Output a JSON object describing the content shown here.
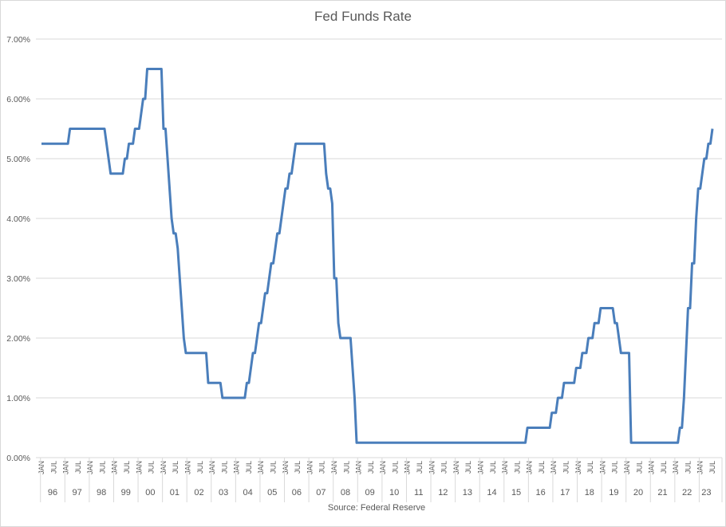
{
  "chart_data": {
    "type": "line",
    "title": "Fed Funds Rate",
    "source": "Source: Federal Reserve",
    "categories": [
      "JAN",
      null,
      null,
      null,
      null,
      null,
      "JUL",
      null,
      null,
      null,
      null,
      null,
      "JAN",
      null,
      null,
      null,
      null,
      null,
      "JUL",
      null,
      null,
      null,
      null,
      null,
      "JAN",
      null,
      null,
      null,
      null,
      null,
      "JUL",
      null,
      null,
      null,
      null,
      null,
      "JAN",
      null,
      null,
      null,
      null,
      null,
      "JUL",
      null,
      null,
      null,
      null,
      null,
      "JAN",
      null,
      null,
      null,
      null,
      null,
      "JUL",
      null,
      null,
      null,
      null,
      null,
      "JAN",
      null,
      null,
      null,
      null,
      null,
      "JUL",
      null,
      null,
      null,
      null,
      null,
      "JAN",
      null,
      null,
      null,
      null,
      null,
      "JUL",
      null,
      null,
      null,
      null,
      null,
      "JAN",
      null,
      null,
      null,
      null,
      null,
      "JUL",
      null,
      null,
      null,
      null,
      null,
      "JAN",
      null,
      null,
      null,
      null,
      null,
      "JUL",
      null,
      null,
      null,
      null,
      null,
      "JAN",
      null,
      null,
      null,
      null,
      null,
      "JUL",
      null,
      null,
      null,
      null,
      null,
      "JAN",
      null,
      null,
      null,
      null,
      null,
      "JUL",
      null,
      null,
      null,
      null,
      null,
      "JAN",
      null,
      null,
      null,
      null,
      null,
      "JUL",
      null,
      null,
      null,
      null,
      null,
      "JAN",
      null,
      null,
      null,
      null,
      null,
      "JUL",
      null,
      null,
      null,
      null,
      null,
      "JAN",
      null,
      null,
      null,
      null,
      null,
      "JUL",
      null,
      null,
      null,
      null,
      null,
      "JAN",
      null,
      null,
      null,
      null,
      null,
      "JUL",
      null,
      null,
      null,
      null,
      null,
      "JAN",
      null,
      null,
      null,
      null,
      null,
      "JUL",
      null,
      null,
      null,
      null,
      null,
      "JAN",
      null,
      null,
      null,
      null,
      null,
      "JUL",
      null,
      null,
      null,
      null,
      null,
      "JAN",
      null,
      null,
      null,
      null,
      null,
      "JUL",
      null,
      null,
      null,
      null,
      null,
      "JAN",
      null,
      null,
      null,
      null,
      null,
      "JUL",
      null,
      null,
      null,
      null,
      null,
      "JAN",
      null,
      null,
      null,
      null,
      null,
      "JUL",
      null,
      null,
      null,
      null,
      null,
      "JAN",
      null,
      null,
      null,
      null,
      null,
      "JUL",
      null,
      null,
      null,
      null,
      null,
      "JAN",
      null,
      null,
      null,
      null,
      null,
      "JUL",
      null,
      null,
      null,
      null,
      null,
      "JAN",
      null,
      null,
      null,
      null,
      null,
      "JUL",
      null,
      null,
      null,
      null,
      null,
      "JAN",
      null,
      null,
      null,
      null,
      null,
      "JUL",
      null,
      null,
      null,
      null,
      null,
      "JAN",
      null,
      null,
      null,
      null,
      null,
      "JUL",
      null,
      null,
      null,
      null,
      null,
      "JAN",
      null,
      null,
      null,
      null,
      null,
      "JUL",
      null,
      null,
      null,
      null,
      null,
      "JAN",
      null,
      null,
      null,
      null,
      null,
      "JUL",
      null,
      null,
      null,
      null,
      null,
      "JAN",
      null,
      null,
      null,
      null,
      null,
      "JUL"
    ],
    "year_labels": [
      "96",
      "97",
      "98",
      "99",
      "00",
      "01",
      "02",
      "03",
      "04",
      "05",
      "06",
      "07",
      "08",
      "09",
      "10",
      "11",
      "12",
      "13",
      "14",
      "15",
      "16",
      "17",
      "18",
      "19",
      "20",
      "21",
      "22",
      "23"
    ],
    "series": [
      {
        "name": "Fed Funds Rate",
        "color": "#4a7ebb",
        "values": [
          5.25,
          5.25,
          5.25,
          5.25,
          5.25,
          5.25,
          5.25,
          5.25,
          5.25,
          5.25,
          5.25,
          5.25,
          5.25,
          5.25,
          5.5,
          5.5,
          5.5,
          5.5,
          5.5,
          5.5,
          5.5,
          5.5,
          5.5,
          5.5,
          5.5,
          5.5,
          5.5,
          5.5,
          5.5,
          5.5,
          5.5,
          5.5,
          5.25,
          5.0,
          4.75,
          4.75,
          4.75,
          4.75,
          4.75,
          4.75,
          4.75,
          5.0,
          5.0,
          5.25,
          5.25,
          5.25,
          5.5,
          5.5,
          5.5,
          5.75,
          6.0,
          6.0,
          6.5,
          6.5,
          6.5,
          6.5,
          6.5,
          6.5,
          6.5,
          6.5,
          5.5,
          5.5,
          5.0,
          4.5,
          4.0,
          3.75,
          3.75,
          3.5,
          3.0,
          2.5,
          2.0,
          1.75,
          1.75,
          1.75,
          1.75,
          1.75,
          1.75,
          1.75,
          1.75,
          1.75,
          1.75,
          1.75,
          1.25,
          1.25,
          1.25,
          1.25,
          1.25,
          1.25,
          1.25,
          1.0,
          1.0,
          1.0,
          1.0,
          1.0,
          1.0,
          1.0,
          1.0,
          1.0,
          1.0,
          1.0,
          1.0,
          1.25,
          1.25,
          1.5,
          1.75,
          1.75,
          2.0,
          2.25,
          2.25,
          2.5,
          2.75,
          2.75,
          3.0,
          3.25,
          3.25,
          3.5,
          3.75,
          3.75,
          4.0,
          4.25,
          4.5,
          4.5,
          4.75,
          4.75,
          5.0,
          5.25,
          5.25,
          5.25,
          5.25,
          5.25,
          5.25,
          5.25,
          5.25,
          5.25,
          5.25,
          5.25,
          5.25,
          5.25,
          5.25,
          5.25,
          4.75,
          4.5,
          4.5,
          4.25,
          3.0,
          3.0,
          2.25,
          2.0,
          2.0,
          2.0,
          2.0,
          2.0,
          2.0,
          1.5,
          1.0,
          0.25,
          0.25,
          0.25,
          0.25,
          0.25,
          0.25,
          0.25,
          0.25,
          0.25,
          0.25,
          0.25,
          0.25,
          0.25,
          0.25,
          0.25,
          0.25,
          0.25,
          0.25,
          0.25,
          0.25,
          0.25,
          0.25,
          0.25,
          0.25,
          0.25,
          0.25,
          0.25,
          0.25,
          0.25,
          0.25,
          0.25,
          0.25,
          0.25,
          0.25,
          0.25,
          0.25,
          0.25,
          0.25,
          0.25,
          0.25,
          0.25,
          0.25,
          0.25,
          0.25,
          0.25,
          0.25,
          0.25,
          0.25,
          0.25,
          0.25,
          0.25,
          0.25,
          0.25,
          0.25,
          0.25,
          0.25,
          0.25,
          0.25,
          0.25,
          0.25,
          0.25,
          0.25,
          0.25,
          0.25,
          0.25,
          0.25,
          0.25,
          0.25,
          0.25,
          0.25,
          0.25,
          0.25,
          0.25,
          0.25,
          0.25,
          0.25,
          0.25,
          0.25,
          0.25,
          0.25,
          0.25,
          0.25,
          0.25,
          0.25,
          0.5,
          0.5,
          0.5,
          0.5,
          0.5,
          0.5,
          0.5,
          0.5,
          0.5,
          0.5,
          0.5,
          0.5,
          0.75,
          0.75,
          0.75,
          1.0,
          1.0,
          1.0,
          1.25,
          1.25,
          1.25,
          1.25,
          1.25,
          1.25,
          1.5,
          1.5,
          1.5,
          1.75,
          1.75,
          1.75,
          2.0,
          2.0,
          2.0,
          2.25,
          2.25,
          2.25,
          2.5,
          2.5,
          2.5,
          2.5,
          2.5,
          2.5,
          2.5,
          2.25,
          2.25,
          2.0,
          1.75,
          1.75,
          1.75,
          1.75,
          1.75,
          0.25,
          0.25,
          0.25,
          0.25,
          0.25,
          0.25,
          0.25,
          0.25,
          0.25,
          0.25,
          0.25,
          0.25,
          0.25,
          0.25,
          0.25,
          0.25,
          0.25,
          0.25,
          0.25,
          0.25,
          0.25,
          0.25,
          0.25,
          0.25,
          0.5,
          0.5,
          1.0,
          1.75,
          2.5,
          2.5,
          3.25,
          3.25,
          4.0,
          4.5,
          4.5,
          4.75,
          5.0,
          5.0,
          5.25,
          5.25,
          5.5
        ]
      }
    ],
    "ylim": [
      0,
      7
    ],
    "yticks": [
      {
        "value": 0,
        "label": "0.00%"
      },
      {
        "value": 1,
        "label": "1.00%"
      },
      {
        "value": 2,
        "label": "2.00%"
      },
      {
        "value": 3,
        "label": "3.00%"
      },
      {
        "value": 4,
        "label": "4.00%"
      },
      {
        "value": 5,
        "label": "5.00%"
      },
      {
        "value": 6,
        "label": "6.00%"
      },
      {
        "value": 7,
        "label": "7.00%"
      }
    ],
    "grid": true
  }
}
